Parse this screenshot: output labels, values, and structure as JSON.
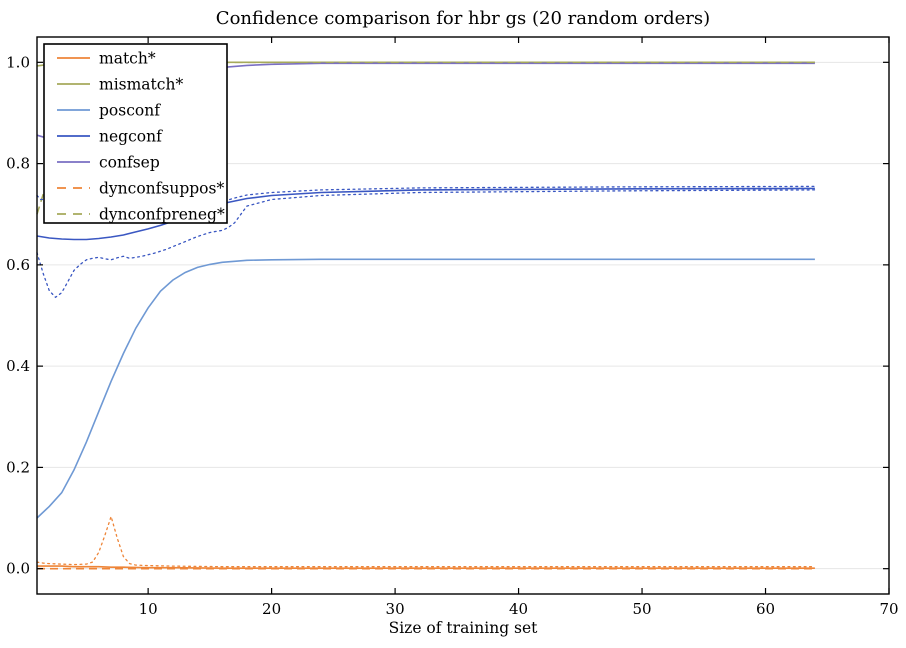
{
  "figure": {
    "background": "#ffffff"
  },
  "chart_data": {
    "type": "line",
    "title": "Confidence comparison for hbr gs (20 random orders)",
    "xlabel": "Size of training set",
    "ylabel": "",
    "xlim": [
      1,
      70
    ],
    "ylim": [
      -0.05,
      1.05
    ],
    "grid": "horizontal-only",
    "grid_color": "#e6e6e6",
    "frame_color": "#000000",
    "legend_position": "upper-left",
    "xticks": {
      "values": [
        10,
        20,
        30,
        40,
        50,
        60,
        70
      ],
      "labels": [
        "10",
        "20",
        "30",
        "40",
        "50",
        "60",
        "70"
      ]
    },
    "yticks": {
      "values": [
        0.0,
        0.2,
        0.4,
        0.6,
        0.8,
        1.0
      ],
      "labels": [
        "0.0",
        "0.2",
        "0.4",
        "0.6",
        "0.8",
        "1.0"
      ]
    },
    "palette": {
      "orange": "#ee8538",
      "olive": "#a6aa5b",
      "lightblue": "#6f99d4",
      "blue": "#3a57c2",
      "purple": "#7a6fc3"
    },
    "series": [
      {
        "name": "match",
        "label": "match*",
        "color": "#ee8538",
        "style": "solid",
        "in_legend": true,
        "x": [
          1,
          2,
          3,
          4,
          5,
          6,
          7,
          8,
          10,
          12,
          16,
          20,
          28,
          40,
          64
        ],
        "y": [
          0.005,
          0.005,
          0.005,
          0.004,
          0.004,
          0.004,
          0.003,
          0.003,
          0.002,
          0.002,
          0.001,
          0.001,
          0.001,
          0.001,
          0.001
        ]
      },
      {
        "name": "mismatch",
        "label": "mismatch*",
        "color": "#a6aa5b",
        "style": "solid",
        "in_legend": true,
        "x": [
          1,
          2,
          3,
          4,
          6,
          10,
          20,
          40,
          64
        ],
        "y": [
          0.993,
          0.996,
          0.998,
          0.999,
          1.0,
          1.0,
          1.0,
          1.0,
          1.0
        ]
      },
      {
        "name": "posconf",
        "label": "posconf",
        "color": "#6f99d4",
        "style": "solid",
        "in_legend": true,
        "x": [
          1,
          2,
          3,
          4,
          5,
          6,
          7,
          8,
          9,
          10,
          11,
          12,
          13,
          14,
          15,
          16,
          18,
          20,
          24,
          32,
          48,
          64
        ],
        "y": [
          0.1,
          0.123,
          0.15,
          0.195,
          0.25,
          0.31,
          0.37,
          0.425,
          0.475,
          0.515,
          0.548,
          0.57,
          0.585,
          0.595,
          0.601,
          0.605,
          0.609,
          0.61,
          0.611,
          0.611,
          0.611,
          0.611
        ]
      },
      {
        "name": "negconf",
        "label": "negconf",
        "color": "#3a57c2",
        "style": "solid",
        "in_legend": true,
        "x": [
          1,
          2,
          3,
          4,
          5,
          6,
          7,
          8,
          9,
          10,
          11,
          12,
          13,
          14,
          15,
          16,
          18,
          20,
          24,
          32,
          48,
          64
        ],
        "y": [
          0.657,
          0.653,
          0.651,
          0.65,
          0.65,
          0.652,
          0.655,
          0.659,
          0.665,
          0.671,
          0.678,
          0.686,
          0.695,
          0.704,
          0.713,
          0.721,
          0.731,
          0.737,
          0.743,
          0.748,
          0.75,
          0.751
        ]
      },
      {
        "name": "confsep",
        "label": "confsep",
        "color": "#7a6fc3",
        "style": "solid",
        "in_legend": true,
        "x": [
          1,
          2,
          3,
          4,
          5,
          6,
          7,
          8,
          9,
          10,
          12,
          14,
          16,
          18,
          20,
          24,
          32,
          48,
          64
        ],
        "y": [
          0.856,
          0.849,
          0.853,
          0.866,
          0.884,
          0.903,
          0.921,
          0.937,
          0.95,
          0.96,
          0.975,
          0.984,
          0.99,
          0.994,
          0.996,
          0.998,
          0.998,
          0.998,
          0.998
        ]
      },
      {
        "name": "dynconfsuppos",
        "label": "dynconfsuppos*",
        "color": "#ee8538",
        "style": "dashed",
        "in_legend": true,
        "x": [
          1,
          2,
          4,
          8,
          16,
          32,
          64
        ],
        "y": [
          0.0,
          0.0,
          0.0,
          0.0,
          0.0,
          0.0,
          0.0
        ]
      },
      {
        "name": "dynconfpreneg",
        "label": "dynconfpreneg*",
        "color": "#a6aa5b",
        "style": "dashed",
        "in_legend": true,
        "x": [
          1,
          2,
          3,
          4,
          5,
          6,
          7,
          8,
          10,
          12,
          16,
          24,
          40,
          64
        ],
        "y": [
          0.7,
          0.778,
          0.842,
          0.893,
          0.931,
          0.957,
          0.974,
          0.985,
          0.995,
          0.998,
          1.0,
          1.0,
          1.0,
          1.0
        ]
      },
      {
        "name": "negconf-std-lower",
        "label": "",
        "color": "#3a57c2",
        "style": "dotted",
        "in_legend": false,
        "x": [
          1,
          1.5,
          2,
          2.5,
          3,
          3.5,
          4,
          4.5,
          5,
          5.5,
          6,
          6.5,
          7,
          7.5,
          8,
          8.5,
          9,
          9.5,
          10,
          10.5,
          11,
          11.5,
          12,
          12.5,
          13,
          13.5,
          14,
          14.5,
          15,
          15.5,
          16,
          16.5,
          17,
          18,
          20,
          24,
          32,
          48,
          64
        ],
        "y": [
          0.624,
          0.583,
          0.549,
          0.536,
          0.545,
          0.567,
          0.589,
          0.601,
          0.61,
          0.613,
          0.615,
          0.612,
          0.61,
          0.614,
          0.617,
          0.613,
          0.615,
          0.617,
          0.62,
          0.623,
          0.627,
          0.631,
          0.636,
          0.641,
          0.646,
          0.651,
          0.656,
          0.66,
          0.664,
          0.666,
          0.668,
          0.674,
          0.683,
          0.716,
          0.729,
          0.737,
          0.743,
          0.746,
          0.748
        ]
      },
      {
        "name": "negconf-std-upper",
        "label": "",
        "color": "#3a57c2",
        "style": "dotted",
        "in_legend": false,
        "x": [
          1,
          1.3,
          16.6,
          17,
          18,
          20,
          24,
          32,
          48,
          64
        ],
        "y": [
          0.737,
          0.729,
          0.729,
          0.732,
          0.738,
          0.743,
          0.748,
          0.752,
          0.754,
          0.755
        ]
      },
      {
        "name": "dynconfsuppos-std-upper",
        "label": "",
        "color": "#ee8538",
        "style": "dotted",
        "in_legend": false,
        "x": [
          1,
          1.5,
          2,
          3,
          4,
          5,
          5.5,
          6,
          6.5,
          7,
          7.5,
          8,
          8.5,
          9,
          10,
          12,
          16,
          24,
          40,
          64
        ],
        "y": [
          0.013,
          0.011,
          0.01,
          0.009,
          0.008,
          0.009,
          0.013,
          0.032,
          0.066,
          0.103,
          0.06,
          0.024,
          0.01,
          0.007,
          0.006,
          0.005,
          0.004,
          0.004,
          0.004,
          0.004
        ]
      }
    ]
  }
}
